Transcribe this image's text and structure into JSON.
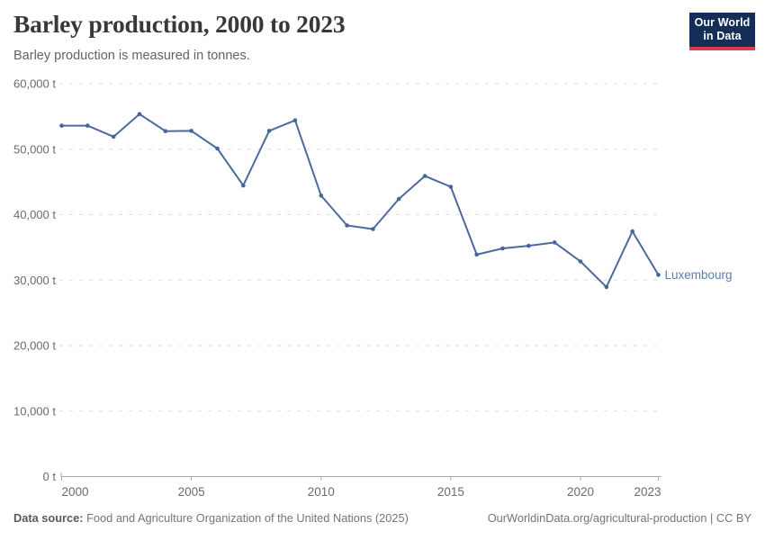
{
  "header": {
    "title": "Barley production, 2000 to 2023",
    "subtitle": "Barley production is measured in tonnes.",
    "logo": {
      "line1": "Our World",
      "line2": "in Data"
    }
  },
  "chart_data": {
    "type": "line",
    "title": "Barley production, 2000 to 2023",
    "unit": "tonnes",
    "x": [
      2000,
      2001,
      2002,
      2003,
      2004,
      2005,
      2006,
      2007,
      2008,
      2009,
      2010,
      2011,
      2012,
      2013,
      2014,
      2015,
      2016,
      2017,
      2018,
      2019,
      2020,
      2021,
      2022,
      2023
    ],
    "series": [
      {
        "name": "Luxembourg",
        "values": [
          53600,
          53600,
          51900,
          55350,
          52750,
          52800,
          50100,
          44450,
          52800,
          54400,
          42900,
          38350,
          37800,
          42400,
          45900,
          44250,
          33900,
          34850,
          35250,
          35750,
          32850,
          28950,
          37450,
          30800
        ]
      }
    ],
    "x_ticks": [
      2000,
      2005,
      2010,
      2015,
      2020,
      2023
    ],
    "y_ticks": [
      0,
      10000,
      20000,
      30000,
      40000,
      50000,
      60000
    ],
    "y_tick_labels": [
      "0 t",
      "10,000 t",
      "20,000 t",
      "30,000 t",
      "40,000 t",
      "50,000 t",
      "60,000 t"
    ],
    "xlim": [
      2000,
      2023
    ],
    "ylim": [
      0,
      60000
    ],
    "grid": "horizontal dashed",
    "legend_position": "end-of-line entity label",
    "colors": {
      "line": "#4c6a9c",
      "point": "#46659b",
      "entity_label": "#5b7fb0",
      "grid": "#dddddd",
      "axis": "#a9a9a9",
      "tick_text": "#6b6b6b"
    }
  },
  "footer": {
    "datasource_label": "Data source:",
    "datasource_text": "Food and Agriculture Organization of the United Nations (2025)",
    "credit": "OurWorldinData.org/agricultural-production | CC BY"
  }
}
